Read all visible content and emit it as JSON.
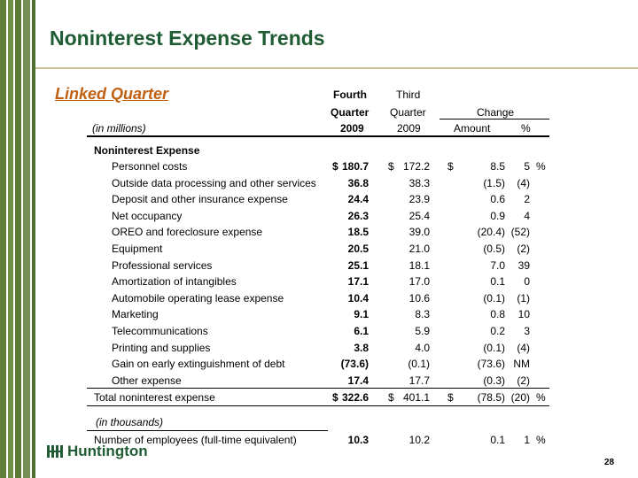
{
  "title": "Noninterest Expense Trends",
  "subtitle": "Linked Quarter",
  "header": {
    "fourth": "Fourth",
    "quarter_bold": "Quarter",
    "year_bold": "2009",
    "third": "Third",
    "quarter": "Quarter",
    "year": "2009",
    "change": "Change",
    "amount": "Amount",
    "pct": "%",
    "units": "(in millions)"
  },
  "section_title": "Noninterest Expense",
  "rows": [
    {
      "label": "Personnel costs",
      "q4_prefix": "$",
      "q4": "180.7",
      "q3_prefix": "$",
      "q3": "172.2",
      "amt_prefix": "$",
      "amt": "8.5",
      "pct": "5",
      "pct_suffix": "%"
    },
    {
      "label": "Outside data processing and other services",
      "q4": "36.8",
      "q3": "38.3",
      "amt": "(1.5)",
      "pct": "(4)"
    },
    {
      "label": "Deposit and other insurance expense",
      "q4": "24.4",
      "q3": "23.9",
      "amt": "0.6",
      "pct": "2"
    },
    {
      "label": "Net occupancy",
      "q4": "26.3",
      "q3": "25.4",
      "amt": "0.9",
      "pct": "4"
    },
    {
      "label": "OREO and foreclosure expense",
      "q4": "18.5",
      "q3": "39.0",
      "amt": "(20.4)",
      "pct": "(52)"
    },
    {
      "label": "Equipment",
      "q4": "20.5",
      "q3": "21.0",
      "amt": "(0.5)",
      "pct": "(2)"
    },
    {
      "label": "Professional services",
      "q4": "25.1",
      "q3": "18.1",
      "amt": "7.0",
      "pct": "39"
    },
    {
      "label": "Amortization of intangibles",
      "q4": "17.1",
      "q3": "17.0",
      "amt": "0.1",
      "pct": "0"
    },
    {
      "label": "Automobile operating lease expense",
      "q4": "10.4",
      "q3": "10.6",
      "amt": "(0.1)",
      "pct": "(1)"
    },
    {
      "label": "Marketing",
      "q4": "9.1",
      "q3": "8.3",
      "amt": "0.8",
      "pct": "10"
    },
    {
      "label": "Telecommunications",
      "q4": "6.1",
      "q3": "5.9",
      "amt": "0.2",
      "pct": "3"
    },
    {
      "label": "Printing and supplies",
      "q4": "3.8",
      "q3": "4.0",
      "amt": "(0.1)",
      "pct": "(4)"
    },
    {
      "label": "Gain on early extinguishment of debt",
      "q4": "(73.6)",
      "q3": "(0.1)",
      "amt": "(73.6)",
      "pct": "NM"
    },
    {
      "label": "Other expense",
      "q4": "17.4",
      "q3": "17.7",
      "amt": "(0.3)",
      "pct": "(2)"
    }
  ],
  "total": {
    "label": "Total noninterest expense",
    "q4_prefix": "$",
    "q4": "322.6",
    "q3_prefix": "$",
    "q3": "401.1",
    "amt_prefix": "$",
    "amt": "(78.5)",
    "pct": "(20)",
    "pct_suffix": "%"
  },
  "employees_units": "(in thousands)",
  "employees": {
    "label": "Number of employees (full-time equivalent)",
    "q4": "10.3",
    "q3": "10.2",
    "amt": "0.1",
    "pct": "1",
    "pct_suffix": "%"
  },
  "logo_text": "Huntington",
  "page_number": "28"
}
